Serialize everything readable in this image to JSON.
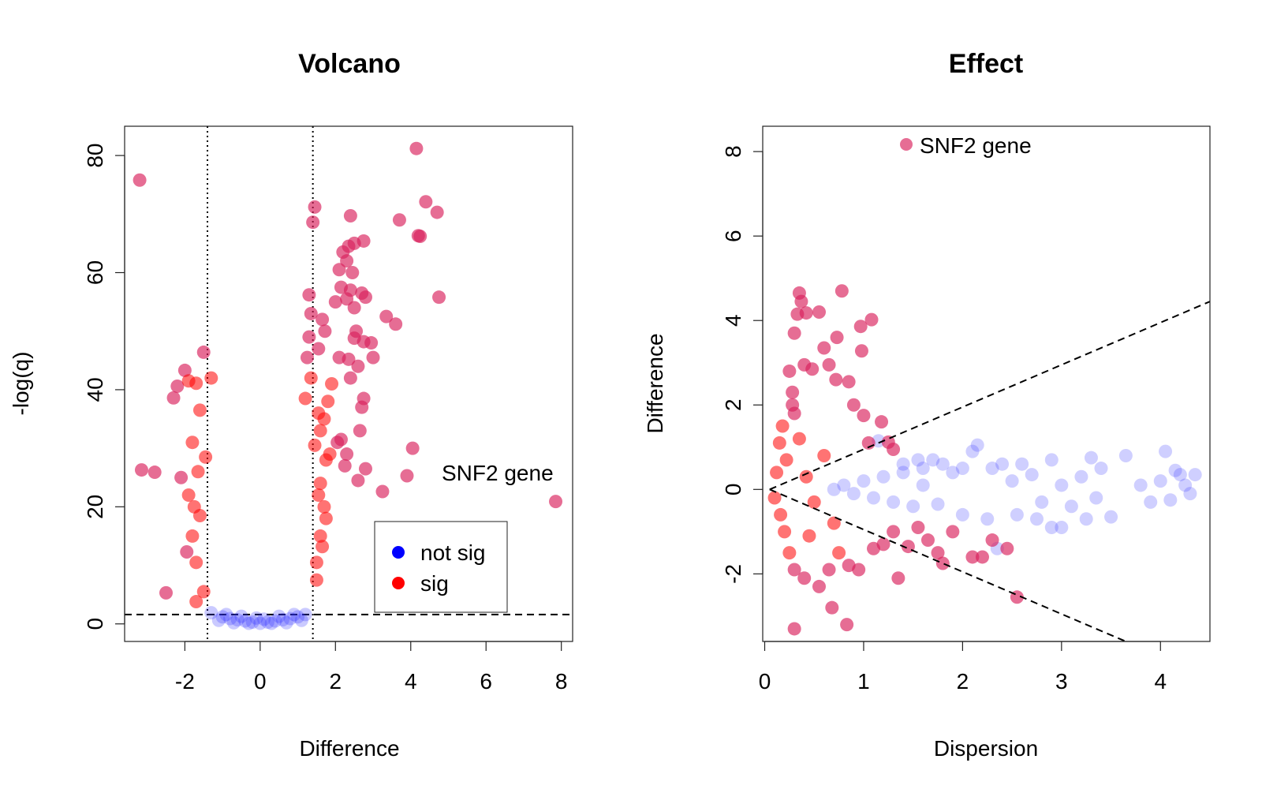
{
  "chart_data": [
    {
      "type": "scatter",
      "title": "Volcano",
      "xlabel": "Difference",
      "ylabel": "-log(q)",
      "xlim": [
        -3.6,
        8.3
      ],
      "ylim": [
        -3,
        85
      ],
      "x_ticks": [
        -2,
        0,
        2,
        4,
        6,
        8
      ],
      "y_ticks": [
        0,
        20,
        40,
        60,
        80
      ],
      "x_tick_labels": [
        "-2",
        "0",
        "2",
        "4",
        "6",
        "8"
      ],
      "y_tick_labels": [
        "0",
        "20",
        "40",
        "60",
        "80"
      ],
      "threshold_lines": {
        "vertical": [
          -1.4,
          1.4
        ],
        "horizontal": [
          1.6
        ]
      },
      "annotation": {
        "text": "SNF2 gene",
        "x": 7.85,
        "y": 20.9
      },
      "legend": {
        "position": "bottom-right",
        "entries": [
          {
            "label": "not sig",
            "color": "#0000ff"
          },
          {
            "label": "sig",
            "color": "#ff0000"
          }
        ]
      },
      "colors": {
        "not_sig": "#2b2bff",
        "sig": "#ff0000",
        "sig_outlier": "#d81e5b"
      },
      "series": [
        {
          "name": "sig",
          "points": [
            [
              -3.2,
              75.8
            ],
            [
              -3.15,
              26.3
            ],
            [
              -2.8,
              25.9
            ],
            [
              -2.5,
              5.3
            ],
            [
              -2.3,
              38.6
            ],
            [
              -2.2,
              40.6
            ],
            [
              -2.0,
              43.3
            ],
            [
              -1.9,
              41.5
            ],
            [
              -1.7,
              41.1
            ],
            [
              -1.5,
              46.4
            ],
            [
              -1.3,
              42.0
            ],
            [
              -1.6,
              36.5
            ],
            [
              -1.8,
              31.0
            ],
            [
              -1.9,
              22.0
            ],
            [
              -2.1,
              25.0
            ],
            [
              -1.95,
              12.3
            ],
            [
              -1.7,
              10.5
            ],
            [
              -1.6,
              18.5
            ],
            [
              -1.8,
              15.0
            ],
            [
              -1.5,
              5.5
            ],
            [
              -1.7,
              3.8
            ],
            [
              -1.45,
              28.5
            ],
            [
              -1.65,
              26.0
            ],
            [
              -1.75,
              20.0
            ],
            [
              4.15,
              81.2
            ],
            [
              4.4,
              72.1
            ],
            [
              4.7,
              70.3
            ],
            [
              4.2,
              66.3
            ],
            [
              4.25,
              66.2
            ],
            [
              3.7,
              69.0
            ],
            [
              4.75,
              55.8
            ],
            [
              3.6,
              51.2
            ],
            [
              3.35,
              52.5
            ],
            [
              2.4,
              69.7
            ],
            [
              2.75,
              65.4
            ],
            [
              2.5,
              65.0
            ],
            [
              2.35,
              64.5
            ],
            [
              2.2,
              63.5
            ],
            [
              2.1,
              60.5
            ],
            [
              2.3,
              62.0
            ],
            [
              2.45,
              60.0
            ],
            [
              2.4,
              57.0
            ],
            [
              2.15,
              57.5
            ],
            [
              2.0,
              55.0
            ],
            [
              2.3,
              55.5
            ],
            [
              2.5,
              54.0
            ],
            [
              2.7,
              56.5
            ],
            [
              2.8,
              55.8
            ],
            [
              2.55,
              50.0
            ],
            [
              2.6,
              44.0
            ],
            [
              2.95,
              48.0
            ],
            [
              3.0,
              45.5
            ],
            [
              2.75,
              48.2
            ],
            [
              2.5,
              48.8
            ],
            [
              2.35,
              45.2
            ],
            [
              2.4,
              42.0
            ],
            [
              2.75,
              38.5
            ],
            [
              2.7,
              37.0
            ],
            [
              2.1,
              45.5
            ],
            [
              1.9,
              41.0
            ],
            [
              1.8,
              38.0
            ],
            [
              1.7,
              35.0
            ],
            [
              1.85,
              29.0
            ],
            [
              2.05,
              31.0
            ],
            [
              2.15,
              31.5
            ],
            [
              2.3,
              29.0
            ],
            [
              2.25,
              27.0
            ],
            [
              2.6,
              24.5
            ],
            [
              2.65,
              33.0
            ],
            [
              2.8,
              26.5
            ],
            [
              3.25,
              22.6
            ],
            [
              3.9,
              25.3
            ],
            [
              4.05,
              30.0
            ],
            [
              1.72,
              50.0
            ],
            [
              1.65,
              52.0
            ],
            [
              1.55,
              47.0
            ],
            [
              1.45,
              71.2
            ],
            [
              1.4,
              68.6
            ],
            [
              1.3,
              56.2
            ],
            [
              1.35,
              53.0
            ],
            [
              1.3,
              49.0
            ],
            [
              1.25,
              45.5
            ],
            [
              1.35,
              42.0
            ],
            [
              1.2,
              38.5
            ],
            [
              1.55,
              36.0
            ],
            [
              1.6,
              33.0
            ],
            [
              1.75,
              28.0
            ],
            [
              1.6,
              24.0
            ],
            [
              1.7,
              20.0
            ],
            [
              1.6,
              15.0
            ],
            [
              1.65,
              13.2
            ],
            [
              1.5,
              10.5
            ],
            [
              1.5,
              7.5
            ],
            [
              1.75,
              18.0
            ],
            [
              1.55,
              22.0
            ],
            [
              1.45,
              30.5
            ],
            [
              7.85,
              20.9
            ]
          ]
        },
        {
          "name": "not sig",
          "points": [
            [
              -1.3,
              1.9
            ],
            [
              -1.0,
              1.2
            ],
            [
              -0.8,
              0.9
            ],
            [
              -0.6,
              0.7
            ],
            [
              -0.4,
              0.5
            ],
            [
              -0.2,
              0.3
            ],
            [
              0.0,
              0.1
            ],
            [
              0.2,
              0.3
            ],
            [
              0.4,
              0.5
            ],
            [
              0.6,
              0.7
            ],
            [
              0.8,
              0.9
            ],
            [
              1.0,
              1.2
            ],
            [
              1.2,
              1.6
            ],
            [
              -1.1,
              0.6
            ],
            [
              -0.7,
              0.2
            ],
            [
              -0.3,
              0.1
            ],
            [
              0.3,
              0.1
            ],
            [
              0.7,
              0.2
            ],
            [
              1.1,
              0.6
            ],
            [
              0.1,
              0.8
            ],
            [
              -0.1,
              1.0
            ],
            [
              0.5,
              1.3
            ],
            [
              -0.5,
              1.3
            ],
            [
              0.9,
              1.6
            ],
            [
              -0.9,
              1.6
            ]
          ]
        }
      ]
    },
    {
      "type": "scatter",
      "title": "Effect",
      "xlabel": "Dispersion",
      "ylabel": "Difference",
      "xlim": [
        -0.02,
        4.5
      ],
      "ylim": [
        -3.6,
        8.6
      ],
      "x_ticks": [
        0,
        1,
        2,
        3,
        4
      ],
      "y_ticks": [
        -2,
        0,
        2,
        4,
        6,
        8
      ],
      "x_tick_labels": [
        "0",
        "1",
        "2",
        "3",
        "4"
      ],
      "y_tick_labels": [
        "-2",
        "0",
        "2",
        "4",
        "6",
        "8"
      ],
      "reference_lines": [
        {
          "from": [
            0.05,
            0.0
          ],
          "to": [
            4.5,
            4.45
          ]
        },
        {
          "from": [
            0.05,
            0.0
          ],
          "to": [
            3.65,
            -3.6
          ]
        }
      ],
      "annotation": {
        "text": "SNF2 gene",
        "x": 1.42,
        "y": 7.85
      },
      "colors": {
        "not_sig": "#4040ff",
        "sig": "#ff0000",
        "sig_outlier": "#d81e5b"
      },
      "series": [
        {
          "name": "sig",
          "points": [
            [
              0.35,
              4.65
            ],
            [
              0.37,
              4.45
            ],
            [
              0.33,
              4.15
            ],
            [
              0.42,
              4.18
            ],
            [
              0.55,
              4.2
            ],
            [
              0.78,
              4.7
            ],
            [
              1.08,
              4.02
            ],
            [
              0.97,
              3.86
            ],
            [
              0.98,
              3.28
            ],
            [
              0.73,
              3.6
            ],
            [
              0.3,
              3.7
            ],
            [
              0.6,
              3.35
            ],
            [
              0.25,
              2.8
            ],
            [
              0.4,
              2.95
            ],
            [
              0.48,
              2.85
            ],
            [
              0.65,
              2.95
            ],
            [
              0.72,
              2.6
            ],
            [
              0.85,
              2.55
            ],
            [
              0.9,
              2.0
            ],
            [
              1.0,
              1.75
            ],
            [
              1.18,
              1.6
            ],
            [
              1.05,
              1.1
            ],
            [
              1.25,
              1.12
            ],
            [
              1.3,
              0.95
            ],
            [
              0.18,
              1.5
            ],
            [
              0.15,
              1.1
            ],
            [
              0.22,
              0.7
            ],
            [
              0.12,
              0.4
            ],
            [
              0.1,
              -0.2
            ],
            [
              0.16,
              -0.6
            ],
            [
              0.2,
              -1.0
            ],
            [
              0.25,
              -1.5
            ],
            [
              0.3,
              -1.9
            ],
            [
              0.4,
              -2.1
            ],
            [
              0.55,
              -2.3
            ],
            [
              0.65,
              -1.9
            ],
            [
              0.75,
              -1.5
            ],
            [
              0.85,
              -1.8
            ],
            [
              0.95,
              -1.9
            ],
            [
              1.1,
              -1.4
            ],
            [
              1.2,
              -1.3
            ],
            [
              1.3,
              -1.0
            ],
            [
              1.45,
              -1.35
            ],
            [
              1.55,
              -0.9
            ],
            [
              1.65,
              -1.2
            ],
            [
              1.75,
              -1.5
            ],
            [
              1.8,
              -1.75
            ],
            [
              1.9,
              -1.0
            ],
            [
              2.1,
              -1.6
            ],
            [
              2.2,
              -1.6
            ],
            [
              2.3,
              -1.2
            ],
            [
              2.45,
              -1.4
            ],
            [
              1.35,
              -2.1
            ],
            [
              0.3,
              -3.3
            ],
            [
              0.83,
              -3.2
            ],
            [
              0.68,
              -2.8
            ],
            [
              2.55,
              -2.55
            ],
            [
              0.42,
              0.3
            ],
            [
              0.5,
              -0.3
            ],
            [
              0.6,
              0.8
            ],
            [
              0.7,
              -0.8
            ],
            [
              0.35,
              1.2
            ],
            [
              0.45,
              -1.1
            ],
            [
              0.28,
              2.3
            ],
            [
              0.28,
              2.0
            ],
            [
              0.3,
              1.8
            ]
          ]
        },
        {
          "name": "not sig",
          "points": [
            [
              0.7,
              0.0
            ],
            [
              0.8,
              0.1
            ],
            [
              0.9,
              -0.1
            ],
            [
              1.0,
              0.2
            ],
            [
              1.1,
              -0.2
            ],
            [
              1.2,
              0.3
            ],
            [
              1.3,
              -0.3
            ],
            [
              1.4,
              0.4
            ],
            [
              1.5,
              -0.4
            ],
            [
              1.6,
              0.5
            ],
            [
              1.7,
              0.7
            ],
            [
              1.8,
              0.6
            ],
            [
              1.9,
              0.4
            ],
            [
              2.0,
              0.5
            ],
            [
              2.1,
              0.9
            ],
            [
              2.15,
              1.05
            ],
            [
              2.3,
              0.5
            ],
            [
              2.4,
              0.6
            ],
            [
              2.5,
              0.2
            ],
            [
              2.6,
              0.6
            ],
            [
              2.7,
              0.35
            ],
            [
              2.8,
              -0.3
            ],
            [
              2.9,
              0.7
            ],
            [
              3.0,
              0.1
            ],
            [
              3.1,
              -0.4
            ],
            [
              3.2,
              0.3
            ],
            [
              3.3,
              0.75
            ],
            [
              3.4,
              0.5
            ],
            [
              3.5,
              -0.65
            ],
            [
              3.65,
              0.8
            ],
            [
              3.8,
              0.1
            ],
            [
              3.9,
              -0.3
            ],
            [
              4.0,
              0.2
            ],
            [
              4.05,
              0.9
            ],
            [
              4.1,
              -0.25
            ],
            [
              4.15,
              0.45
            ],
            [
              4.2,
              0.35
            ],
            [
              4.25,
              0.1
            ],
            [
              4.3,
              -0.1
            ],
            [
              4.35,
              0.35
            ],
            [
              1.55,
              0.7
            ],
            [
              1.75,
              -0.35
            ],
            [
              2.0,
              -0.6
            ],
            [
              2.25,
              -0.7
            ],
            [
              2.55,
              -0.6
            ],
            [
              2.75,
              -0.7
            ],
            [
              3.0,
              -0.9
            ],
            [
              3.25,
              -0.7
            ],
            [
              1.15,
              1.15
            ],
            [
              1.4,
              0.6
            ],
            [
              1.6,
              0.1
            ],
            [
              2.35,
              -1.4
            ],
            [
              2.9,
              -0.9
            ],
            [
              3.35,
              -0.2
            ]
          ]
        }
      ]
    }
  ]
}
